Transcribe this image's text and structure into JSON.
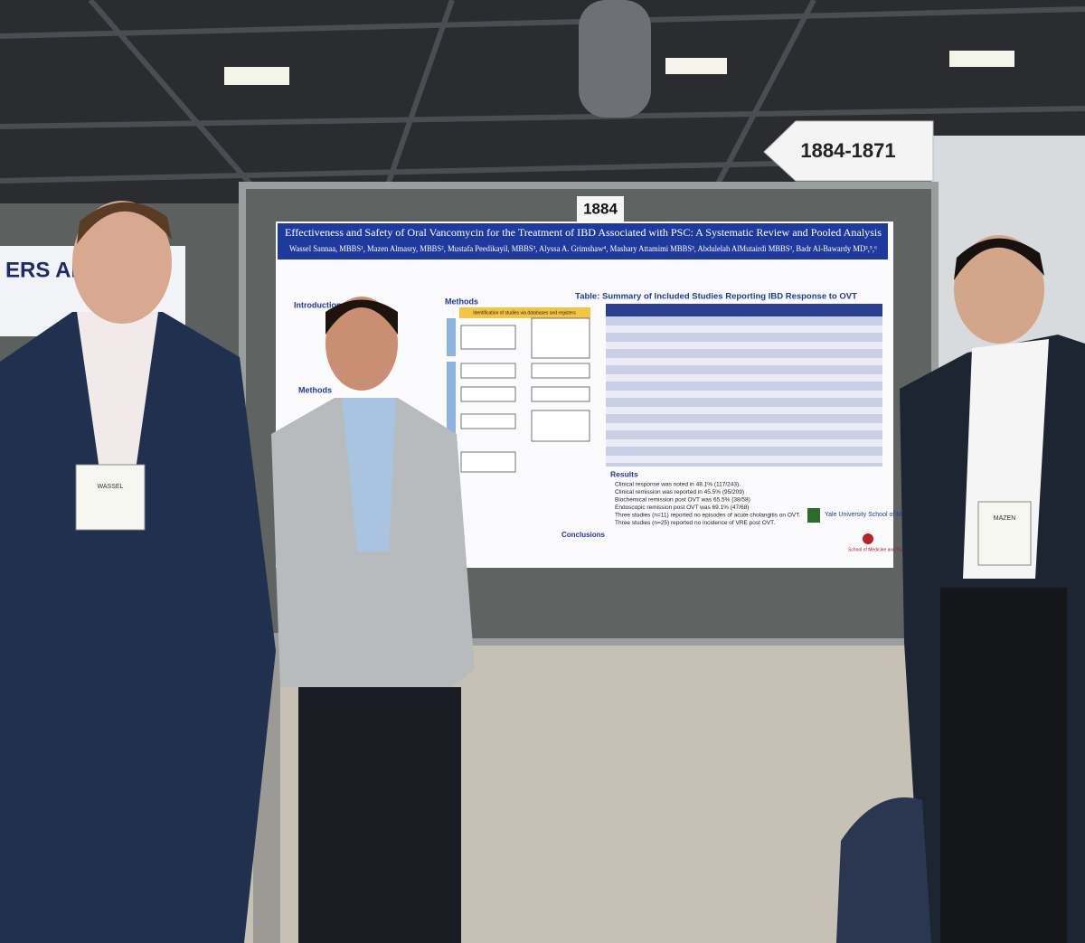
{
  "signs": {
    "aisle": "1884-1871",
    "board": "1884"
  },
  "left_poster": {
    "fragment": "ERS AFTER"
  },
  "poster": {
    "title": "Effectiveness and Safety of Oral Vancomycin for the Treatment of IBD Associated with PSC: A Systematic Review and Pooled Analysis",
    "authors": "Wassel Sannaa, MBBS¹, Mazen Almasry, MBBS², Mustafa Peedikayil, MBBS³, Alyssa A. Grimshaw⁴, Mashary Attamimi MBBS³, Abdulelah AlMutairdi MBBS³, Badr Al-Bawardy MD³,⁵,⁶",
    "introduction": "Introduction",
    "methods_left": "Methods",
    "methods_center": "Methods",
    "flow_header": "Identification of studies via databases and registers",
    "table_title": "Table: Summary of Included Studies Reporting IBD Response to OVT",
    "results": "Results",
    "results_bullets": [
      "Clinical response was noted in 48.1% (117/243).",
      "Clinical remission was reported in 45.5% (95/209)",
      "Biochemical remission post OVT was 65.5% (38/58)",
      "Endoscopic remission post OVT was 69.1% (47/68)",
      "Three studies (n=11) reported no episodes of acute cholangitis on OVT.",
      "Three studies (n=25) reported no incidence of VRE post OVT."
    ],
    "conclusions": "Conclusions",
    "logos": [
      "Yale University School of Medicine",
      "School of Medicine and Public Health"
    ]
  },
  "badges": [
    "WASSEL",
    "MAZEN"
  ]
}
